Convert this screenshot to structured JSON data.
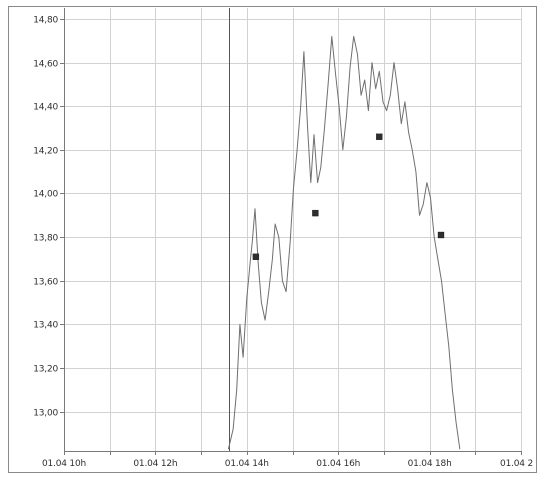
{
  "chart_data": {
    "type": "line",
    "title": "",
    "xlabel": "",
    "ylabel": "",
    "grid": true,
    "xlim": [
      10.0,
      20.0
    ],
    "ylim": [
      12.82,
      14.85
    ],
    "x_tick_values": [
      10,
      11,
      12,
      13,
      14,
      15,
      16,
      17,
      18,
      19,
      20
    ],
    "x_tick_labels": [
      {
        "x": 10,
        "label": "01.04 10h"
      },
      {
        "x": 12,
        "label": "01.04 12h"
      },
      {
        "x": 14,
        "label": "01.04 14h"
      },
      {
        "x": 16,
        "label": "01.04 16h"
      },
      {
        "x": 18,
        "label": "01.04 18h"
      },
      {
        "x": 20,
        "label": "01.04 2"
      }
    ],
    "y_ticks": [
      13.0,
      13.2,
      13.4,
      13.6,
      13.8,
      14.0,
      14.2,
      14.4,
      14.6,
      14.8
    ],
    "y_tick_labels": [
      "13,00",
      "13,20",
      "13,40",
      "13,60",
      "13,80",
      "14,00",
      "14,20",
      "14,40",
      "14,60",
      "14,80"
    ],
    "vertical_marker_x": 13.6,
    "series": [
      {
        "x": [
          13.6,
          13.7,
          13.78,
          13.85,
          13.92,
          14.0,
          14.08,
          14.12,
          14.18,
          14.25,
          14.32,
          14.4,
          14.48,
          14.56,
          14.62,
          14.7,
          14.78,
          14.86,
          14.95,
          15.02,
          15.1,
          15.18,
          15.25,
          15.33,
          15.4,
          15.47,
          15.55,
          15.62,
          15.7,
          15.78,
          15.86,
          15.94,
          16.02,
          16.1,
          16.18,
          16.26,
          16.34,
          16.42,
          16.5,
          16.58,
          16.66,
          16.74,
          16.82,
          16.9,
          16.98,
          17.06,
          17.14,
          17.22,
          17.3,
          17.38,
          17.46,
          17.54,
          17.62,
          17.7,
          17.78,
          17.86,
          17.94,
          18.02,
          18.1,
          18.18,
          18.26,
          18.34,
          18.42,
          18.5,
          18.58,
          18.66
        ],
        "y": [
          12.83,
          12.92,
          13.1,
          13.4,
          13.25,
          13.52,
          13.7,
          13.78,
          13.93,
          13.68,
          13.5,
          13.42,
          13.55,
          13.7,
          13.86,
          13.8,
          13.6,
          13.55,
          13.78,
          14.02,
          14.2,
          14.4,
          14.65,
          14.3,
          14.05,
          14.27,
          14.05,
          14.12,
          14.3,
          14.5,
          14.72,
          14.55,
          14.4,
          14.2,
          14.35,
          14.58,
          14.72,
          14.64,
          14.45,
          14.52,
          14.38,
          14.6,
          14.48,
          14.56,
          14.42,
          14.38,
          14.45,
          14.6,
          14.48,
          14.32,
          14.42,
          14.28,
          14.2,
          14.1,
          13.9,
          13.95,
          14.05,
          13.98,
          13.8,
          13.7,
          13.6,
          13.45,
          13.3,
          13.1,
          12.95,
          12.83
        ]
      }
    ],
    "markers": [
      {
        "x": 14.2,
        "y": 13.71
      },
      {
        "x": 15.5,
        "y": 13.91
      },
      {
        "x": 16.9,
        "y": 14.26
      },
      {
        "x": 18.25,
        "y": 13.81
      }
    ]
  }
}
